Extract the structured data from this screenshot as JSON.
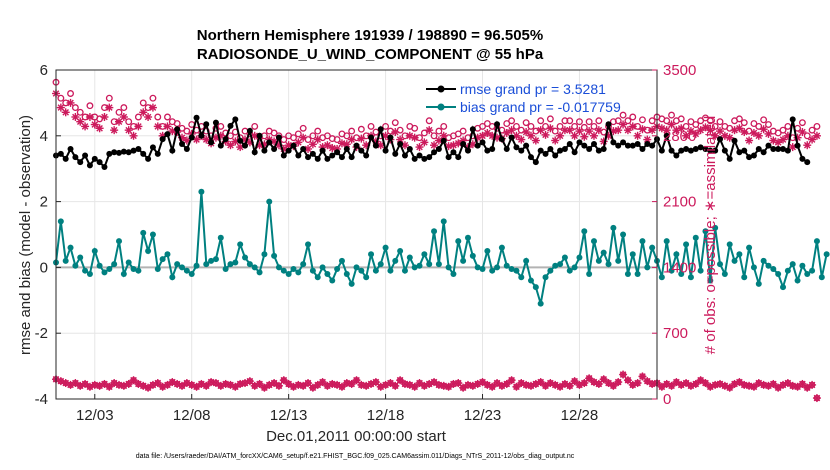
{
  "chart_data": {
    "type": "line",
    "title_line1": "Northern Hemisphere 191939 / 198890 = 96.505%",
    "title_line2": "RADIOSONDE_U_WIND_COMPONENT @ 55 hPa",
    "xlabel": "Dec.01,2011 00:00:00 start",
    "ylabel_left": "rmse and bias (model - observation)",
    "ylabel_right": "# of obs: o=possible; ∗=assimilated",
    "footnote": "data file: /Users/raeder/DAI/ATM_forcXX/CAM6_setup/f.e21.FHIST_BGC.f09_025.CAM6assim.011/Diags_NTrS_2011-12/obs_diag_output.nc",
    "xlim": [
      1,
      32
    ],
    "ylim_left": [
      -4,
      6
    ],
    "ylim_right": [
      0,
      3500
    ],
    "x_ticks": [
      3,
      8,
      13,
      18,
      23,
      28
    ],
    "x_tick_labels": [
      "12/03",
      "12/08",
      "12/13",
      "12/18",
      "12/23",
      "12/28"
    ],
    "y_ticks_left": [
      -4,
      -2,
      0,
      2,
      4,
      6
    ],
    "y_ticks_right": [
      0,
      700,
      1400,
      2100,
      2800,
      3500
    ],
    "legend": [
      {
        "name": "rmse grand pr = 3.5281",
        "color": "#000000",
        "marker": "circle"
      },
      {
        "name": "bias grand pr = -0.017759",
        "color": "#008080",
        "marker": "circle"
      }
    ],
    "colors": {
      "rmse": "#000000",
      "bias": "#008080",
      "obs": "#cc1a5c",
      "zero_line": "#b3b3b3",
      "legend_text": "#1a4ed8"
    },
    "x_start": 1.0,
    "x_step": 0.25,
    "series": [
      {
        "name": "rmse",
        "axis": "left",
        "values": [
          3.4,
          3.45,
          3.3,
          3.6,
          3.35,
          3.2,
          3.4,
          3.1,
          3.3,
          3.2,
          3.05,
          3.45,
          3.5,
          3.48,
          3.52,
          3.5,
          3.55,
          3.6,
          3.45,
          3.3,
          3.65,
          3.45,
          3.9,
          4.05,
          3.55,
          4.2,
          3.75,
          3.6,
          3.95,
          4.55,
          4.0,
          4.35,
          3.8,
          4.4,
          3.7,
          3.9,
          4.3,
          4.5,
          3.85,
          3.7,
          4.15,
          3.5,
          4.0,
          3.55,
          3.8,
          3.6,
          3.95,
          3.4,
          3.55,
          3.7,
          3.4,
          3.6,
          3.35,
          3.45,
          3.3,
          3.55,
          3.3,
          3.4,
          3.5,
          3.35,
          3.6,
          3.35,
          3.7,
          3.55,
          3.4,
          3.95,
          3.7,
          4.2,
          3.55,
          3.95,
          3.45,
          3.75,
          3.4,
          3.6,
          3.3,
          3.4,
          3.3,
          3.35,
          3.5,
          3.6,
          3.85,
          3.35,
          3.5,
          3.35,
          3.75,
          3.55,
          4.2,
          3.7,
          3.8,
          3.55,
          3.6,
          4.35,
          3.9,
          3.6,
          3.95,
          3.65,
          3.55,
          3.7,
          3.35,
          3.2,
          3.55,
          3.45,
          3.6,
          3.4,
          3.55,
          3.6,
          3.75,
          3.5,
          3.8,
          3.7,
          3.6,
          3.75,
          3.55,
          3.6,
          4.35,
          3.8,
          3.7,
          3.8,
          3.7,
          3.7,
          3.75,
          3.6,
          3.75,
          3.7,
          3.9,
          3.55,
          4.0,
          3.55,
          3.4,
          3.55,
          3.6,
          3.55,
          3.6,
          3.65,
          3.6,
          3.55,
          3.55,
          3.9,
          3.55,
          3.3,
          3.85,
          3.5,
          3.55,
          3.35,
          3.4,
          3.6,
          3.5,
          3.7,
          3.6,
          3.6,
          3.6,
          3.55,
          4.5,
          3.7,
          3.3,
          3.2
        ]
      },
      {
        "name": "bias",
        "axis": "left",
        "values": [
          0.15,
          1.4,
          0.2,
          0.6,
          0.05,
          0.3,
          -0.1,
          -0.2,
          0.5,
          0.05,
          -0.15,
          -0.05,
          0.1,
          0.8,
          -0.2,
          0.15,
          -0.05,
          -0.1,
          1.05,
          0.5,
          1.0,
          -0.05,
          0.25,
          0.4,
          -0.3,
          0.1,
          0.0,
          -0.1,
          -0.2,
          0.05,
          2.3,
          0.1,
          0.2,
          0.25,
          0.9,
          -0.05,
          0.1,
          0.15,
          0.7,
          0.3,
          0.1,
          0.0,
          -0.15,
          0.4,
          2.0,
          0.35,
          0.0,
          -0.1,
          -0.2,
          -0.05,
          -0.15,
          0.1,
          0.7,
          -0.1,
          -0.3,
          0.0,
          -0.2,
          -0.4,
          -0.05,
          0.2,
          -0.2,
          -0.5,
          0.0,
          -0.1,
          -0.3,
          0.4,
          -0.1,
          0.1,
          0.6,
          -0.1,
          0.2,
          0.5,
          -0.1,
          0.3,
          0.0,
          0.05,
          0.4,
          0.1,
          1.1,
          0.1,
          1.4,
          0.0,
          -0.2,
          0.8,
          0.2,
          0.9,
          0.35,
          0.0,
          -0.05,
          0.5,
          -0.1,
          0.0,
          0.6,
          0.05,
          -0.05,
          -0.1,
          -0.3,
          0.2,
          -0.4,
          -0.6,
          -1.1,
          -0.3,
          -0.1,
          0.05,
          0.1,
          0.3,
          -0.1,
          0.0,
          0.3,
          1.1,
          -0.2,
          0.8,
          0.2,
          0.45,
          0.1,
          1.2,
          0.2,
          1.0,
          -0.2,
          0.4,
          -0.2,
          0.8,
          0.0,
          0.6,
          0.2,
          -0.3,
          0.8,
          -0.1,
          0.4,
          -0.2,
          0.7,
          -0.3,
          0.9,
          -0.1,
          1.1,
          -0.4,
          1.2,
          0.1,
          -0.2,
          0.7,
          0.2,
          0.4,
          -0.3,
          0.6,
          0.0,
          -0.5,
          0.2,
          0.05,
          -0.05,
          -0.2,
          -0.6,
          -0.1,
          0.1,
          -0.4,
          0.05,
          -0.2,
          -0.1,
          0.8,
          -0.3,
          0.4
        ]
      },
      {
        "name": "obs_possible",
        "axis": "right",
        "values": [
          3370,
          3200,
          3150,
          3250,
          3100,
          3050,
          3000,
          3120,
          3000,
          2980,
          3100,
          3200,
          2950,
          3050,
          3100,
          2950,
          2900,
          3000,
          3150,
          3100,
          3200,
          3000,
          2900,
          3000,
          2950,
          2930,
          2880,
          2850,
          2920,
          2860,
          2900,
          2850,
          2800,
          2880,
          2900,
          2830,
          2800,
          2840,
          2780,
          2850,
          2820,
          2900,
          2780,
          2800,
          2850,
          2830,
          2800,
          2760,
          2800,
          2780,
          2820,
          2880,
          2760,
          2800,
          2850,
          2780,
          2800,
          2770,
          2760,
          2820,
          2800,
          2850,
          2780,
          2870,
          2800,
          2900,
          2840,
          2800,
          2900,
          2850,
          2940,
          2860,
          2800,
          2900,
          2880,
          2780,
          2830,
          2960,
          2800,
          2850,
          2900,
          2780,
          2800,
          2820,
          2850,
          2780,
          2800,
          2880,
          2900,
          2930,
          2900,
          2880,
          2860,
          2930,
          2960,
          2900,
          2860,
          2940,
          2900,
          2850,
          2960,
          2900,
          2980,
          2850,
          2900,
          2960,
          2960,
          2900,
          2950,
          2890,
          2950,
          2900,
          2960,
          2840,
          2900,
          2950,
          2960,
          3020,
          2960,
          3000,
          2900,
          2970,
          2860,
          2960,
          3000,
          2980,
          2960,
          3020,
          2960,
          2980,
          2900,
          2950,
          2920,
          2960,
          2990,
          2960,
          2900,
          2950,
          2900,
          2880,
          2960,
          2980,
          2940,
          2850,
          2930,
          2900,
          2970,
          2920,
          2850,
          2830,
          2860,
          2900,
          2780,
          2880,
          2940,
          2800,
          2860,
          2900
        ]
      },
      {
        "name": "obs_assimilated",
        "axis": "right",
        "values": [
          3250,
          3100,
          3050,
          3150,
          3000,
          2950,
          2900,
          3000,
          2920,
          2880,
          3000,
          3100,
          2860,
          2950,
          3000,
          2860,
          2800,
          2900,
          3050,
          3000,
          3100,
          2900,
          2800,
          2900,
          2850,
          2840,
          2780,
          2750,
          2820,
          2760,
          2800,
          2760,
          2720,
          2780,
          2800,
          2740,
          2700,
          2740,
          2680,
          2760,
          2730,
          2800,
          2700,
          2710,
          2760,
          2740,
          2700,
          2660,
          2700,
          2690,
          2730,
          2780,
          2660,
          2710,
          2760,
          2680,
          2700,
          2670,
          2660,
          2720,
          2710,
          2760,
          2680,
          2770,
          2700,
          2800,
          2740,
          2700,
          2800,
          2760,
          2840,
          2760,
          2700,
          2800,
          2780,
          2680,
          2730,
          2860,
          2700,
          2750,
          2800,
          2690,
          2700,
          2720,
          2750,
          2680,
          2710,
          2780,
          2800,
          2830,
          2800,
          2780,
          2770,
          2830,
          2860,
          2800,
          2760,
          2840,
          2800,
          2750,
          2860,
          2810,
          2880,
          2750,
          2800,
          2860,
          2860,
          2800,
          2850,
          2790,
          2850,
          2800,
          2860,
          2740,
          2800,
          2850,
          2860,
          2920,
          2860,
          2900,
          2800,
          2870,
          2760,
          2860,
          2900,
          2880,
          2860,
          2920,
          2860,
          2880,
          2800,
          2850,
          2820,
          2860,
          2890,
          2860,
          2800,
          2850,
          2800,
          2780,
          2860,
          2880,
          2840,
          2750,
          2830,
          2800,
          2870,
          2820,
          2750,
          2730,
          2760,
          2800,
          2680,
          2780,
          2840,
          2700,
          2760,
          2800
        ]
      },
      {
        "name": "obs_low",
        "axis": "right",
        "values": [
          210,
          190,
          170,
          150,
          170,
          140,
          160,
          130,
          150,
          140,
          160,
          130,
          170,
          150,
          140,
          160,
          200,
          160,
          140,
          120,
          150,
          170,
          130,
          150,
          180,
          160,
          140,
          170,
          150,
          130,
          160,
          140,
          180,
          170,
          140,
          160,
          150,
          130,
          160,
          170,
          190,
          140,
          160,
          120,
          150,
          170,
          140,
          200,
          160,
          130,
          150,
          140,
          170,
          120,
          150,
          180,
          140,
          160,
          150,
          130,
          170,
          160,
          200,
          150,
          140,
          160,
          180,
          130,
          150,
          170,
          140,
          200,
          160,
          150,
          130,
          170,
          140,
          160,
          180,
          150,
          140,
          130,
          160,
          170,
          120,
          150,
          140,
          160,
          180,
          150,
          130,
          170,
          140,
          160,
          200,
          130,
          170,
          150,
          140,
          160,
          180,
          140,
          170,
          150,
          130,
          160,
          140,
          190,
          150,
          170,
          220,
          180,
          160,
          210,
          170,
          140,
          180,
          260,
          200,
          150,
          170,
          240,
          190,
          160,
          170,
          130,
          160,
          140,
          180,
          150,
          170,
          140,
          160,
          200,
          170,
          130,
          150,
          160,
          140,
          120,
          160,
          180,
          150,
          140,
          130,
          170,
          150,
          140,
          160,
          120,
          150,
          170,
          140,
          130,
          160,
          120,
          150,
          10
        ]
      }
    ]
  }
}
